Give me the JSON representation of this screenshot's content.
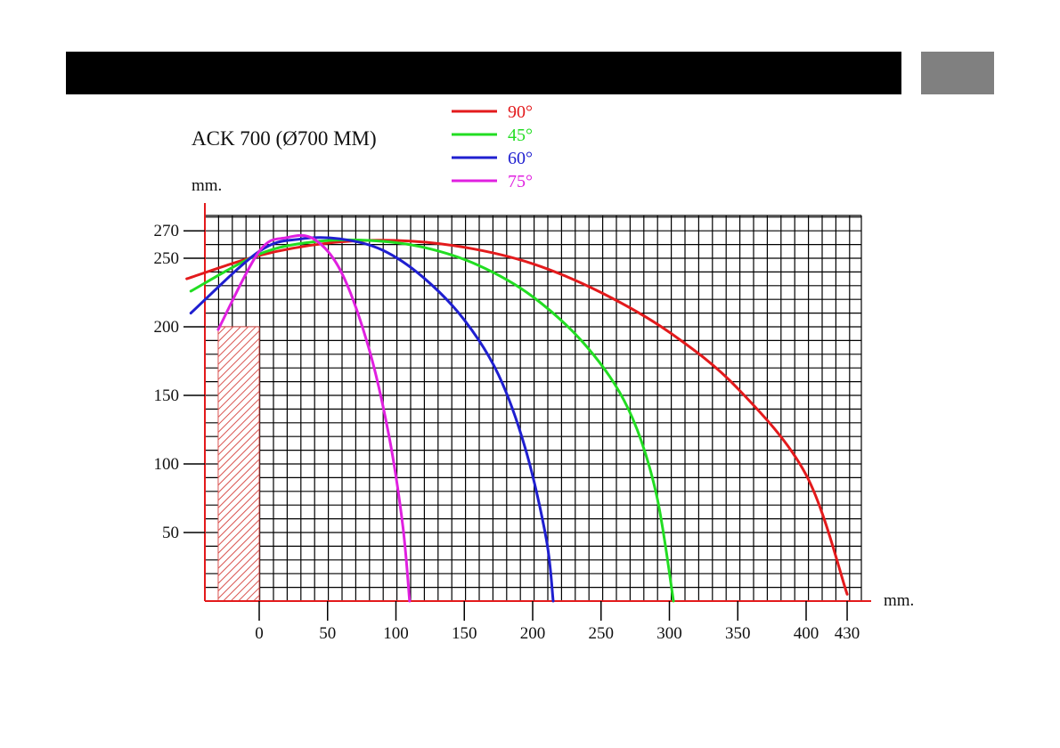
{
  "header": {
    "bar_color": "#000000",
    "tab_color": "#808080"
  },
  "chart_data": {
    "type": "line",
    "title": "ACK 700 (Ø700 MM)",
    "xlabel": "mm.",
    "ylabel": "mm.",
    "xlim": [
      -40,
      440
    ],
    "ylim": [
      0,
      280
    ],
    "x_ticks": [
      0,
      50,
      100,
      150,
      200,
      250,
      300,
      350,
      400,
      430
    ],
    "y_ticks": [
      50,
      100,
      150,
      200,
      250,
      270
    ],
    "grid": true,
    "legend_position": "top-center",
    "obstacle": {
      "x_range": [
        -30,
        0
      ],
      "y_range": [
        0,
        200
      ],
      "color": "#d9534f"
    },
    "series": [
      {
        "name": "90°",
        "color": "#e31a1c",
        "points": [
          [
            -53,
            235
          ],
          [
            0,
            252
          ],
          [
            50,
            261
          ],
          [
            100,
            263
          ],
          [
            150,
            258
          ],
          [
            200,
            246
          ],
          [
            250,
            225
          ],
          [
            300,
            196
          ],
          [
            350,
            155
          ],
          [
            400,
            92
          ],
          [
            430,
            5
          ]
        ]
      },
      {
        "name": "45°",
        "color": "#22dd22",
        "points": [
          [
            -50,
            226
          ],
          [
            0,
            253
          ],
          [
            40,
            262
          ],
          [
            80,
            263
          ],
          [
            120,
            258
          ],
          [
            160,
            245
          ],
          [
            200,
            222
          ],
          [
            240,
            185
          ],
          [
            270,
            140
          ],
          [
            290,
            80
          ],
          [
            303,
            0
          ]
        ]
      },
      {
        "name": "60°",
        "color": "#1f1fd0",
        "points": [
          [
            -50,
            210
          ],
          [
            0,
            255
          ],
          [
            30,
            264
          ],
          [
            60,
            264
          ],
          [
            90,
            256
          ],
          [
            120,
            236
          ],
          [
            150,
            205
          ],
          [
            175,
            165
          ],
          [
            195,
            110
          ],
          [
            210,
            45
          ],
          [
            215,
            0
          ]
        ]
      },
      {
        "name": "75°",
        "color": "#e020e0",
        "points": [
          [
            -30,
            198
          ],
          [
            0,
            255
          ],
          [
            20,
            265
          ],
          [
            40,
            264
          ],
          [
            60,
            240
          ],
          [
            80,
            185
          ],
          [
            95,
            120
          ],
          [
            105,
            55
          ],
          [
            110,
            0
          ]
        ]
      }
    ]
  }
}
